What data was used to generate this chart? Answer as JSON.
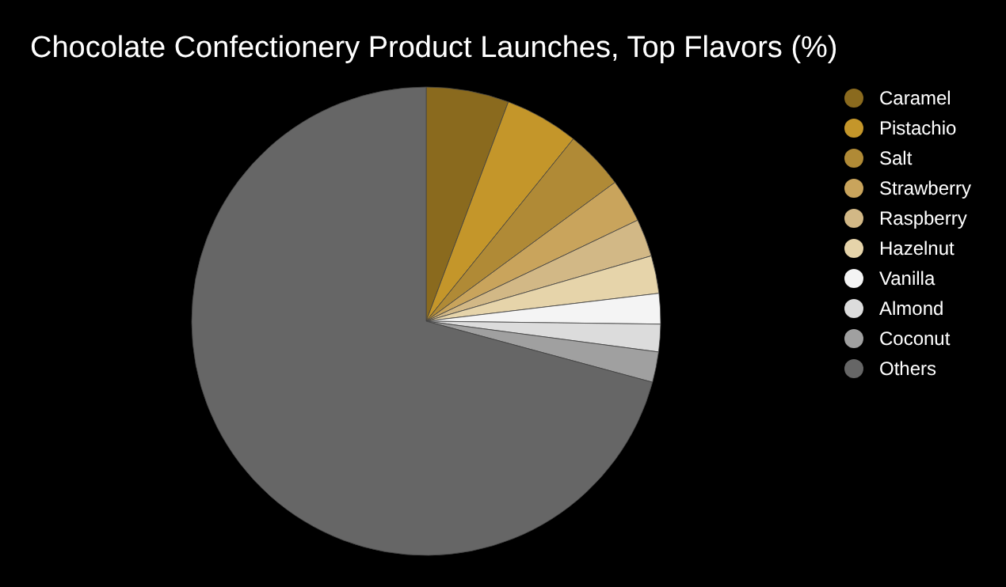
{
  "chart_data": {
    "type": "pie",
    "title": "Chocolate Confectionery Product Launches, Top Flavors (%)",
    "categories": [
      "Caramel",
      "Pistachio",
      "Salt",
      "Strawberry",
      "Raspberry",
      "Hazelnut",
      "Vanilla",
      "Almond",
      "Coconut",
      "Others"
    ],
    "values": [
      5.7,
      5.1,
      4.1,
      3.0,
      2.6,
      2.6,
      2.1,
      1.9,
      2.1,
      70.8
    ],
    "colors": [
      "#8a6a1e",
      "#c4962a",
      "#b08a36",
      "#c9a45c",
      "#d2b886",
      "#e6d4aa",
      "#f4f4f4",
      "#dcdcdc",
      "#a0a0a0",
      "#666666"
    ],
    "legend": "top right"
  }
}
